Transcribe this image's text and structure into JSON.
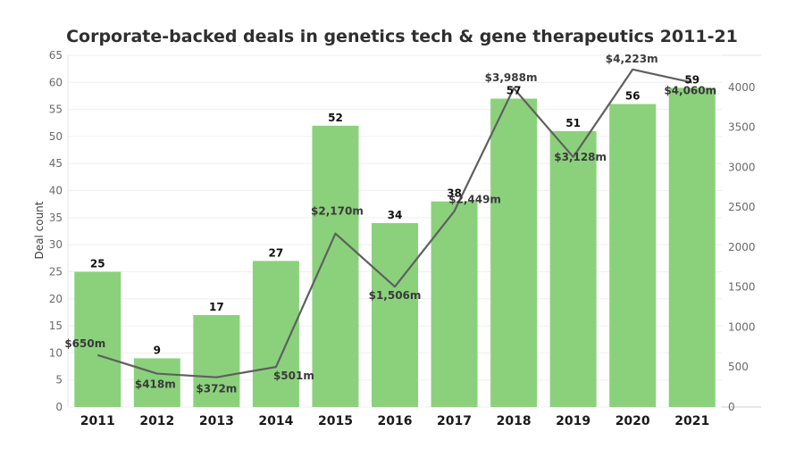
{
  "chart_data": {
    "type": "bar",
    "title": "Corporate-backed deals in genetics tech & gene therapeutics 2011-21",
    "ylabel": "Deal count",
    "categories": [
      "2011",
      "2012",
      "2013",
      "2014",
      "2015",
      "2016",
      "2017",
      "2018",
      "2019",
      "2020",
      "2021"
    ],
    "ylim": [
      0,
      65
    ],
    "y2lim": [
      0,
      4400
    ],
    "y_ticks": [
      "0",
      "5",
      "10",
      "15",
      "20",
      "25",
      "30",
      "35",
      "40",
      "45",
      "50",
      "55",
      "60",
      "65"
    ],
    "y2_ticks": [
      "0",
      "500",
      "1000",
      "1500",
      "2000",
      "2500",
      "3000",
      "3500",
      "4000"
    ],
    "grid": true,
    "series": [
      {
        "type": "bar",
        "values": [
          25,
          9,
          17,
          27,
          52,
          34,
          38,
          57,
          51,
          56,
          59
        ],
        "labels": [
          "25",
          "9",
          "17",
          "27",
          "52",
          "34",
          "38",
          "57",
          "51",
          "56",
          "59"
        ],
        "color": "#8bd17c"
      },
      {
        "type": "line",
        "axis": "right",
        "values": [
          650,
          418,
          372,
          501,
          2170,
          1506,
          2449,
          3988,
          3128,
          4223,
          4060
        ],
        "labels": [
          "$650m",
          "$418m",
          "$372m",
          "$501m",
          "$2,170m",
          "$1,506m",
          "$2,449m",
          "$3,988m",
          "$3,128m",
          "$4,223m",
          "$4,060m"
        ],
        "color": "#5f5f5f"
      }
    ]
  }
}
